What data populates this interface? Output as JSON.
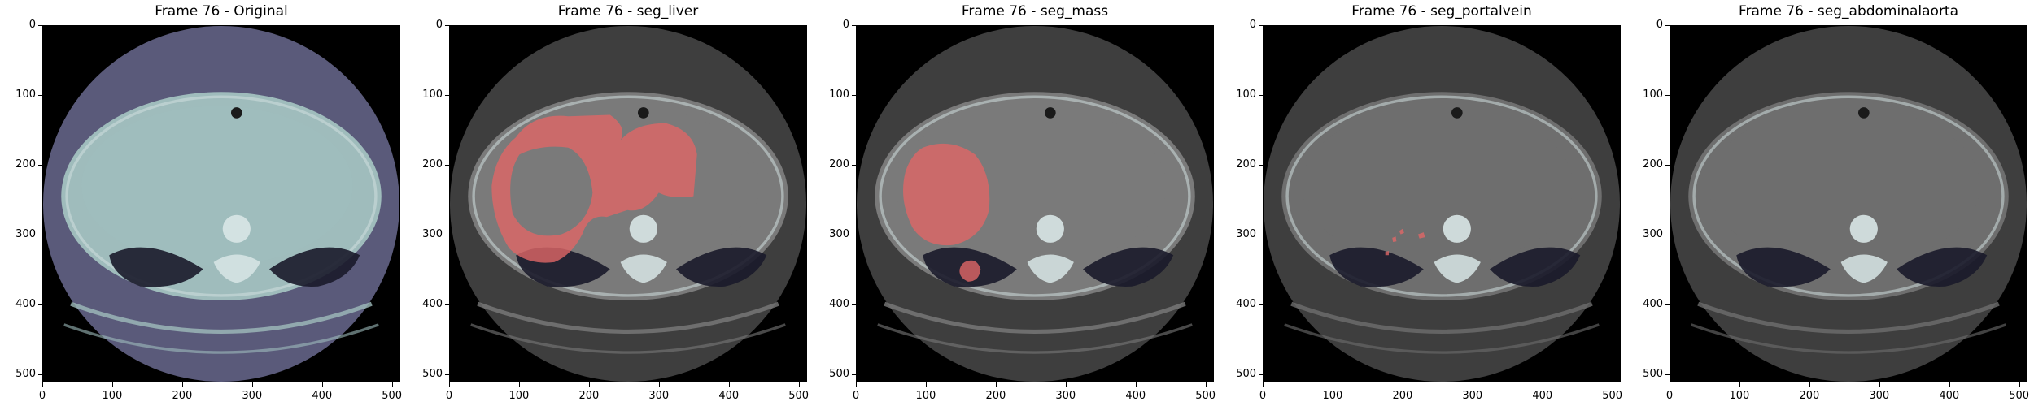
{
  "figure": {
    "panels": [
      {
        "title": "Frame 76 - Original",
        "overlay": "none",
        "body_color": "#9fbcbc",
        "disk_color": "#5a5a7a"
      },
      {
        "title": "Frame 76 - seg_liver",
        "overlay": "liver",
        "body_color": "#7a7a7a",
        "disk_color": "#3e3e3e"
      },
      {
        "title": "Frame 76 - seg_mass",
        "overlay": "mass",
        "body_color": "#7a7a7a",
        "disk_color": "#3e3e3e"
      },
      {
        "title": "Frame 76 - seg_portalvein",
        "overlay": "portalvein",
        "body_color": "#6e6e6e",
        "disk_color": "#3e3e3e"
      },
      {
        "title": "Frame 76 - seg_abdominalaorta",
        "overlay": "none",
        "body_color": "#6e6e6e",
        "disk_color": "#3e3e3e"
      }
    ],
    "y_ticks": [
      "0",
      "100",
      "200",
      "300",
      "400",
      "500"
    ],
    "x_ticks": [
      "0",
      "100",
      "200",
      "300",
      "400",
      "500"
    ],
    "overlay_color": "#e06666"
  }
}
